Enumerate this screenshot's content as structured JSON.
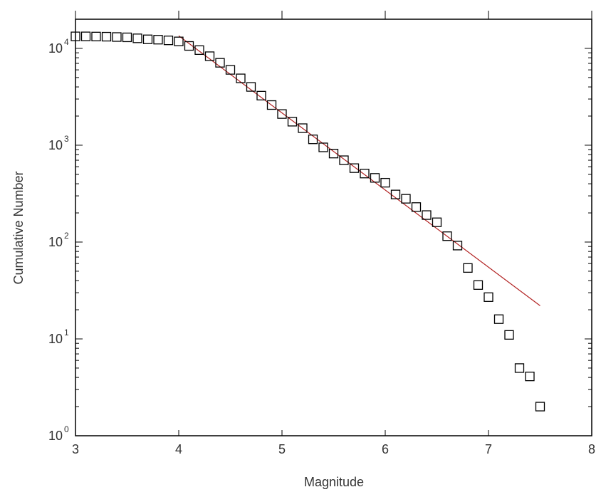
{
  "chart_data": {
    "type": "scatter",
    "title": "",
    "xlabel": "Magnitude",
    "ylabel": "Cumulative Number",
    "xlim": [
      3,
      8
    ],
    "ylim": [
      1,
      20000
    ],
    "yscale": "log",
    "grid": false,
    "legend": "none",
    "x_ticks": [
      3,
      4,
      5,
      6,
      7,
      8
    ],
    "y_ticks": [
      {
        "value": 1,
        "base": "10",
        "exp": "0"
      },
      {
        "value": 10,
        "base": "10",
        "exp": "1"
      },
      {
        "value": 100,
        "base": "10",
        "exp": "2"
      },
      {
        "value": 1000,
        "base": "10",
        "exp": "3"
      },
      {
        "value": 10000,
        "base": "10",
        "exp": "4"
      }
    ],
    "series": [
      {
        "type": "scatter",
        "marker": "open-square",
        "color": "#000000",
        "points": [
          [
            3.0,
            13300
          ],
          [
            3.1,
            13300
          ],
          [
            3.2,
            13250
          ],
          [
            3.3,
            13200
          ],
          [
            3.4,
            13100
          ],
          [
            3.5,
            13000
          ],
          [
            3.6,
            12700
          ],
          [
            3.7,
            12400
          ],
          [
            3.8,
            12300
          ],
          [
            3.9,
            12100
          ],
          [
            4.0,
            11800
          ],
          [
            4.1,
            10600
          ],
          [
            4.2,
            9600
          ],
          [
            4.3,
            8300
          ],
          [
            4.4,
            7100
          ],
          [
            4.5,
            6000
          ],
          [
            4.6,
            4900
          ],
          [
            4.7,
            4000
          ],
          [
            4.8,
            3250
          ],
          [
            4.9,
            2600
          ],
          [
            5.0,
            2100
          ],
          [
            5.1,
            1750
          ],
          [
            5.2,
            1500
          ],
          [
            5.3,
            1150
          ],
          [
            5.4,
            950
          ],
          [
            5.5,
            820
          ],
          [
            5.6,
            700
          ],
          [
            5.7,
            580
          ],
          [
            5.8,
            510
          ],
          [
            5.9,
            460
          ],
          [
            6.0,
            410
          ],
          [
            6.1,
            310
          ],
          [
            6.2,
            280
          ],
          [
            6.3,
            230
          ],
          [
            6.4,
            190
          ],
          [
            6.5,
            160
          ],
          [
            6.6,
            115
          ],
          [
            6.7,
            92
          ],
          [
            6.8,
            54
          ],
          [
            6.9,
            36
          ],
          [
            7.0,
            27
          ],
          [
            7.1,
            16
          ],
          [
            7.2,
            11
          ],
          [
            7.3,
            5
          ],
          [
            7.4,
            4.1
          ],
          [
            7.5,
            2
          ]
        ]
      },
      {
        "type": "line",
        "color": "#b22222",
        "points": [
          [
            4.0,
            13500
          ],
          [
            7.5,
            22
          ]
        ]
      }
    ]
  }
}
